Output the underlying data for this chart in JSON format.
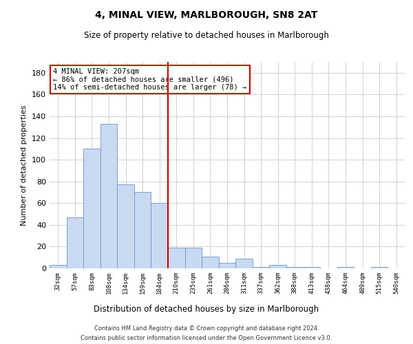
{
  "title": "4, MINAL VIEW, MARLBOROUGH, SN8 2AT",
  "subtitle": "Size of property relative to detached houses in Marlborough",
  "xlabel": "Distribution of detached houses by size in Marlborough",
  "ylabel": "Number of detached properties",
  "footer_line1": "Contains HM Land Registry data © Crown copyright and database right 2024.",
  "footer_line2": "Contains public sector information licensed under the Open Government Licence v3.0.",
  "annotation_title": "4 MINAL VIEW: 207sqm",
  "annotation_line1": "← 86% of detached houses are smaller (496)",
  "annotation_line2": "14% of semi-detached houses are larger (78) →",
  "bar_color": "#c9d9f0",
  "bar_edge_color": "#6a96c8",
  "vline_color": "#cc0000",
  "annotation_box_edge_color": "#cc0000",
  "grid_color": "#d0d0d0",
  "background_color": "#ffffff",
  "categories": [
    "32sqm",
    "57sqm",
    "83sqm",
    "108sqm",
    "134sqm",
    "159sqm",
    "184sqm",
    "210sqm",
    "235sqm",
    "261sqm",
    "286sqm",
    "311sqm",
    "337sqm",
    "362sqm",
    "388sqm",
    "413sqm",
    "438sqm",
    "464sqm",
    "489sqm",
    "515sqm",
    "540sqm"
  ],
  "values": [
    3,
    47,
    110,
    133,
    77,
    70,
    60,
    19,
    19,
    11,
    5,
    9,
    1,
    3,
    1,
    1,
    0,
    1,
    0,
    1,
    0
  ],
  "vline_index": 7,
  "ylim": [
    0,
    190
  ],
  "yticks": [
    0,
    20,
    40,
    60,
    80,
    100,
    120,
    140,
    160,
    180
  ]
}
